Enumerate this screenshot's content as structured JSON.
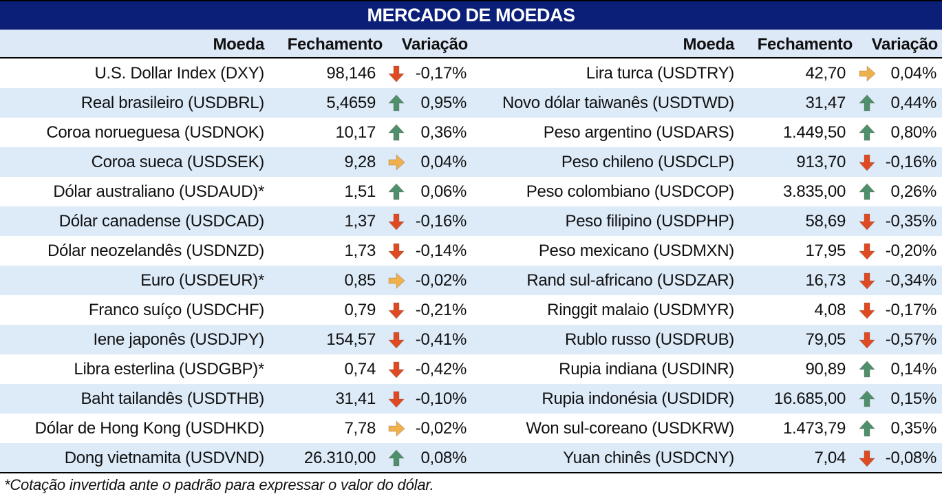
{
  "title": "MERCADO DE MOEDAS",
  "headers": {
    "moeda": "Moeda",
    "fechamento": "Fechamento",
    "variacao": "Variação"
  },
  "arrow_colors": {
    "up": "#4e8f6c",
    "down": "#e04a23",
    "flat": "#f0b04a"
  },
  "left": [
    {
      "name": "U.S. Dollar Index (DXY)",
      "close": "98,146",
      "arrow": "down-arrow-icon",
      "dir": "down",
      "change": "-0,17%"
    },
    {
      "name": "Real brasileiro (USDBRL)",
      "close": "5,4659",
      "arrow": "up-arrow-icon",
      "dir": "up",
      "change": "0,95%"
    },
    {
      "name": "Coroa norueguesa (USDNOK)",
      "close": "10,17",
      "arrow": "up-arrow-icon",
      "dir": "up",
      "change": "0,36%"
    },
    {
      "name": "Coroa sueca (USDSEK)",
      "close": "9,28",
      "arrow": "right-arrow-icon",
      "dir": "flat",
      "change": "0,04%"
    },
    {
      "name": "Dólar australiano (USDAUD)*",
      "close": "1,51",
      "arrow": "up-arrow-icon",
      "dir": "up",
      "change": "0,06%"
    },
    {
      "name": "Dólar canadense (USDCAD)",
      "close": "1,37",
      "arrow": "down-arrow-icon",
      "dir": "down",
      "change": "-0,16%"
    },
    {
      "name": "Dólar neozelandês (USDNZD)",
      "close": "1,73",
      "arrow": "down-arrow-icon",
      "dir": "down",
      "change": "-0,14%"
    },
    {
      "name": "Euro (USDEUR)*",
      "close": "0,85",
      "arrow": "right-arrow-icon",
      "dir": "flat",
      "change": "-0,02%"
    },
    {
      "name": "Franco suíço (USDCHF)",
      "close": "0,79",
      "arrow": "down-arrow-icon",
      "dir": "down",
      "change": "-0,21%"
    },
    {
      "name": "Iene japonês (USDJPY)",
      "close": "154,57",
      "arrow": "down-arrow-icon",
      "dir": "down",
      "change": "-0,41%"
    },
    {
      "name": "Libra esterlina (USDGBP)*",
      "close": "0,74",
      "arrow": "down-arrow-icon",
      "dir": "down",
      "change": "-0,42%"
    },
    {
      "name": "Baht tailandês (USDTHB)",
      "close": "31,41",
      "arrow": "down-arrow-icon",
      "dir": "down",
      "change": "-0,10%"
    },
    {
      "name": "Dólar de Hong Kong (USDHKD)",
      "close": "7,78",
      "arrow": "right-arrow-icon",
      "dir": "flat",
      "change": "-0,02%"
    },
    {
      "name": "Dong vietnamita (USDVND)",
      "close": "26.310,00",
      "arrow": "up-arrow-icon",
      "dir": "up",
      "change": "0,08%"
    }
  ],
  "right": [
    {
      "name": "Lira turca (USDTRY)",
      "close": "42,70",
      "arrow": "right-arrow-icon",
      "dir": "flat",
      "change": "0,04%"
    },
    {
      "name": "Novo dólar taiwanês (USDTWD)",
      "close": "31,47",
      "arrow": "up-arrow-icon",
      "dir": "up",
      "change": "0,44%"
    },
    {
      "name": "Peso argentino (USDARS)",
      "close": "1.449,50",
      "arrow": "up-arrow-icon",
      "dir": "up",
      "change": "0,80%"
    },
    {
      "name": "Peso chileno (USDCLP)",
      "close": "913,70",
      "arrow": "down-arrow-icon",
      "dir": "down",
      "change": "-0,16%"
    },
    {
      "name": "Peso colombiano (USDCOP)",
      "close": "3.835,00",
      "arrow": "up-arrow-icon",
      "dir": "up",
      "change": "0,26%"
    },
    {
      "name": "Peso filipino (USDPHP)",
      "close": "58,69",
      "arrow": "down-arrow-icon",
      "dir": "down",
      "change": "-0,35%"
    },
    {
      "name": "Peso mexicano (USDMXN)",
      "close": "17,95",
      "arrow": "down-arrow-icon",
      "dir": "down",
      "change": "-0,20%"
    },
    {
      "name": "Rand sul-africano (USDZAR)",
      "close": "16,73",
      "arrow": "down-arrow-icon",
      "dir": "down",
      "change": "-0,34%"
    },
    {
      "name": "Ringgit malaio (USDMYR)",
      "close": "4,08",
      "arrow": "down-arrow-icon",
      "dir": "down",
      "change": "-0,17%"
    },
    {
      "name": "Rublo russo (USDRUB)",
      "close": "79,05",
      "arrow": "down-arrow-icon",
      "dir": "down",
      "change": "-0,57%"
    },
    {
      "name": "Rupia indiana (USDINR)",
      "close": "90,89",
      "arrow": "up-arrow-icon",
      "dir": "up",
      "change": "0,14%"
    },
    {
      "name": "Rupia indonésia (USDIDR)",
      "close": "16.685,00",
      "arrow": "up-arrow-icon",
      "dir": "up",
      "change": "0,15%"
    },
    {
      "name": "Won sul-coreano (USDKRW)",
      "close": "1.473,79",
      "arrow": "up-arrow-icon",
      "dir": "up",
      "change": "0,35%"
    },
    {
      "name": "Yuan chinês (USDCNY)",
      "close": "7,04",
      "arrow": "down-arrow-icon",
      "dir": "down",
      "change": "-0,08%"
    }
  ],
  "footnote": "*Cotação invertida ante o padrão para expressar o valor do dólar."
}
